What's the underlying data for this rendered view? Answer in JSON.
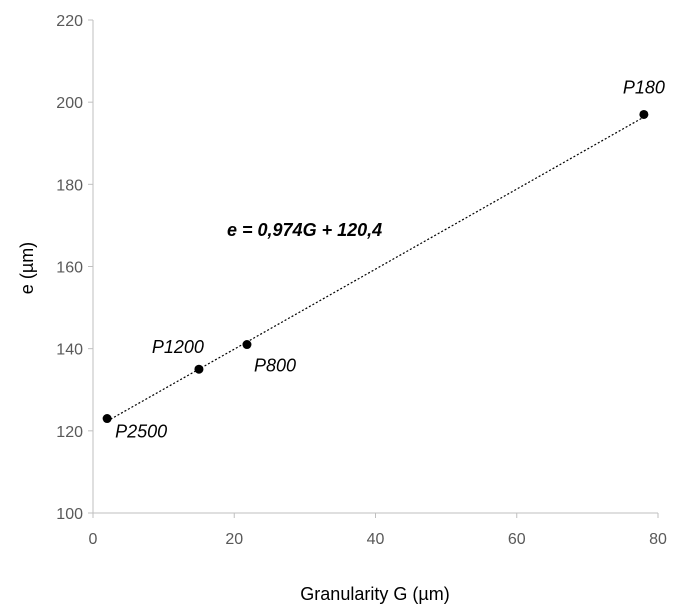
{
  "chart_data": {
    "type": "scatter",
    "title": "",
    "xlabel": "Granularity G (µm)",
    "ylabel": "e (µm)",
    "xlim": [
      0,
      80
    ],
    "ylim": [
      100,
      220
    ],
    "xticks": [
      0,
      20,
      40,
      60,
      80
    ],
    "yticks": [
      100,
      120,
      140,
      160,
      180,
      200,
      220
    ],
    "grid": false,
    "series": [
      {
        "points": [
          {
            "x": 2,
            "y": 123,
            "label": "P2500"
          },
          {
            "x": 15,
            "y": 135,
            "label": "P1200"
          },
          {
            "x": 21.8,
            "y": 141,
            "label": "P800"
          },
          {
            "x": 78,
            "y": 197,
            "label": "P180"
          }
        ],
        "color": "#000000"
      }
    ],
    "trendline": {
      "type": "linear",
      "slope": 0.974,
      "intercept": 120.4,
      "x_range": [
        2,
        78
      ],
      "equation": "e = 0,974G + 120,4",
      "style": "dotted",
      "color": "#000000"
    }
  }
}
